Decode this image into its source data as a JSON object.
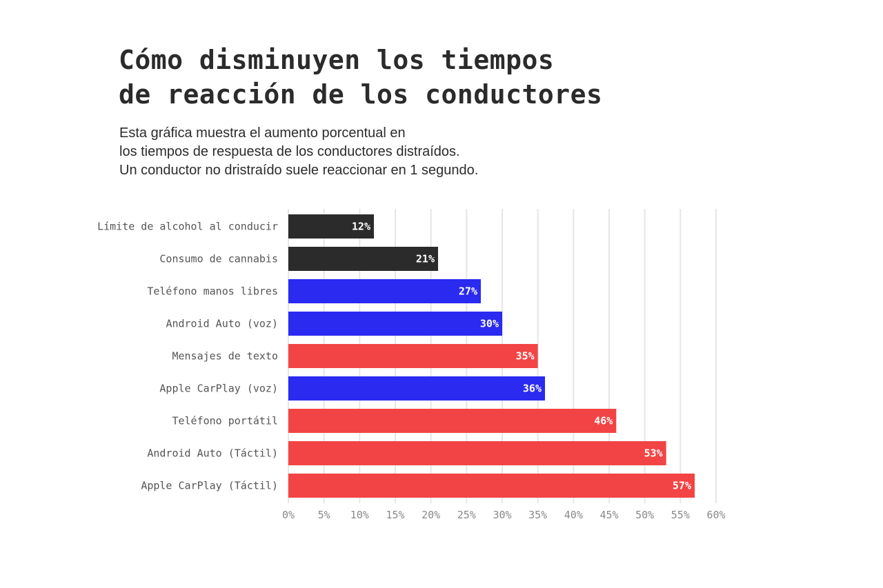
{
  "title_lines": [
    "Cómo disminuyen los tiempos",
    "de reacción de los conductores"
  ],
  "subtitle_lines": [
    "Esta gráfica muestra el aumento porcentual en",
    "los tiempos de respuesta de los conductores distraídos.",
    "Un conductor no dristraído suele reaccionar en 1 segundo."
  ],
  "colors": {
    "black": "#2b2b2b",
    "blue": "#2a2af0",
    "red": "#f24444",
    "grid": "#e6e6e6"
  },
  "chart_data": {
    "type": "bar",
    "orientation": "horizontal",
    "title": "Cómo disminuyen los tiempos de reacción de los conductores",
    "xlabel": "",
    "ylabel": "",
    "xlim": [
      0,
      60
    ],
    "grid": true,
    "legend": "none",
    "categories": [
      "Límite de alcohol al conducir",
      "Consumo de cannabis",
      "Teléfono manos libres",
      "Android Auto (voz)",
      "Mensajes de texto",
      "Apple CarPlay (voz)",
      "Teléfono portátil",
      "Android Auto (Táctil)",
      "Apple CarPlay (Táctil)"
    ],
    "values": [
      12,
      21,
      27,
      30,
      35,
      36,
      46,
      53,
      57
    ],
    "value_labels": [
      "12%",
      "21%",
      "27%",
      "30%",
      "35%",
      "36%",
      "46%",
      "53%",
      "57%"
    ],
    "bar_colors": [
      "black",
      "black",
      "blue",
      "blue",
      "red",
      "blue",
      "red",
      "red",
      "red"
    ],
    "x_ticks": [
      0,
      5,
      10,
      15,
      20,
      25,
      30,
      35,
      40,
      45,
      50,
      55,
      60
    ],
    "x_tick_labels": [
      "0%",
      "5%",
      "10%",
      "15%",
      "20%",
      "25%",
      "30%",
      "35%",
      "40%",
      "45%",
      "50%",
      "55%",
      "60%"
    ]
  }
}
